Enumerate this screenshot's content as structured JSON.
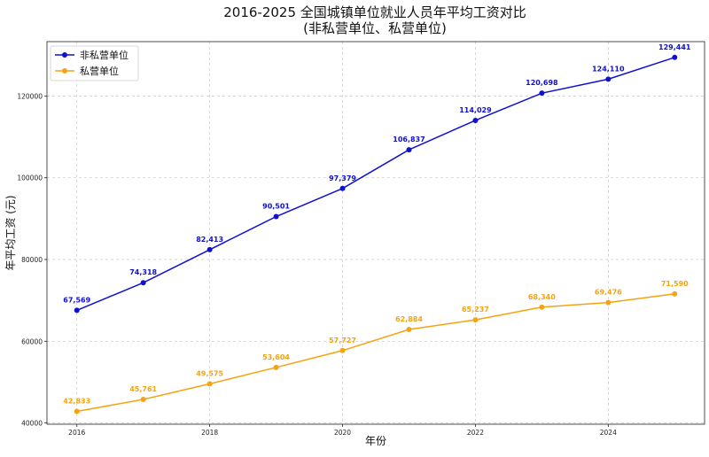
{
  "chart_data": {
    "type": "line",
    "title_line1": "2016-2025 全国城镇单位就业人员年平均工资对比",
    "title_line2": "(非私营单位、私营单位)",
    "xlabel": "年份",
    "ylabel": "年平均工资 (元)",
    "x": [
      2016,
      2017,
      2018,
      2019,
      2020,
      2021,
      2022,
      2023,
      2024,
      2025
    ],
    "xticks": [
      2016,
      2018,
      2020,
      2022,
      2024
    ],
    "yticks": [
      40000,
      60000,
      80000,
      100000,
      120000
    ],
    "xlim": [
      2015.55,
      2025.45
    ],
    "ylim": [
      39700,
      133300
    ],
    "grid": true,
    "legend_position": "top-left",
    "series": [
      {
        "name": "非私营单位",
        "color": "#1010d0",
        "values": [
          67569,
          74318,
          82413,
          90501,
          97379,
          106837,
          114029,
          120698,
          124110,
          129441
        ],
        "labels": [
          "67,569",
          "74,318",
          "82,413",
          "90,501",
          "97,379",
          "106,837",
          "114,029",
          "120,698",
          "124,110",
          "129,441"
        ]
      },
      {
        "name": "私营单位",
        "color": "#f5a310",
        "values": [
          42833,
          45761,
          49575,
          53604,
          57727,
          62884,
          65237,
          68340,
          69476,
          71590
        ],
        "labels": [
          "42,833",
          "45,761",
          "49,575",
          "53,604",
          "57,727",
          "62,884",
          "65,237",
          "68,340",
          "69,476",
          "71,590"
        ]
      }
    ]
  }
}
